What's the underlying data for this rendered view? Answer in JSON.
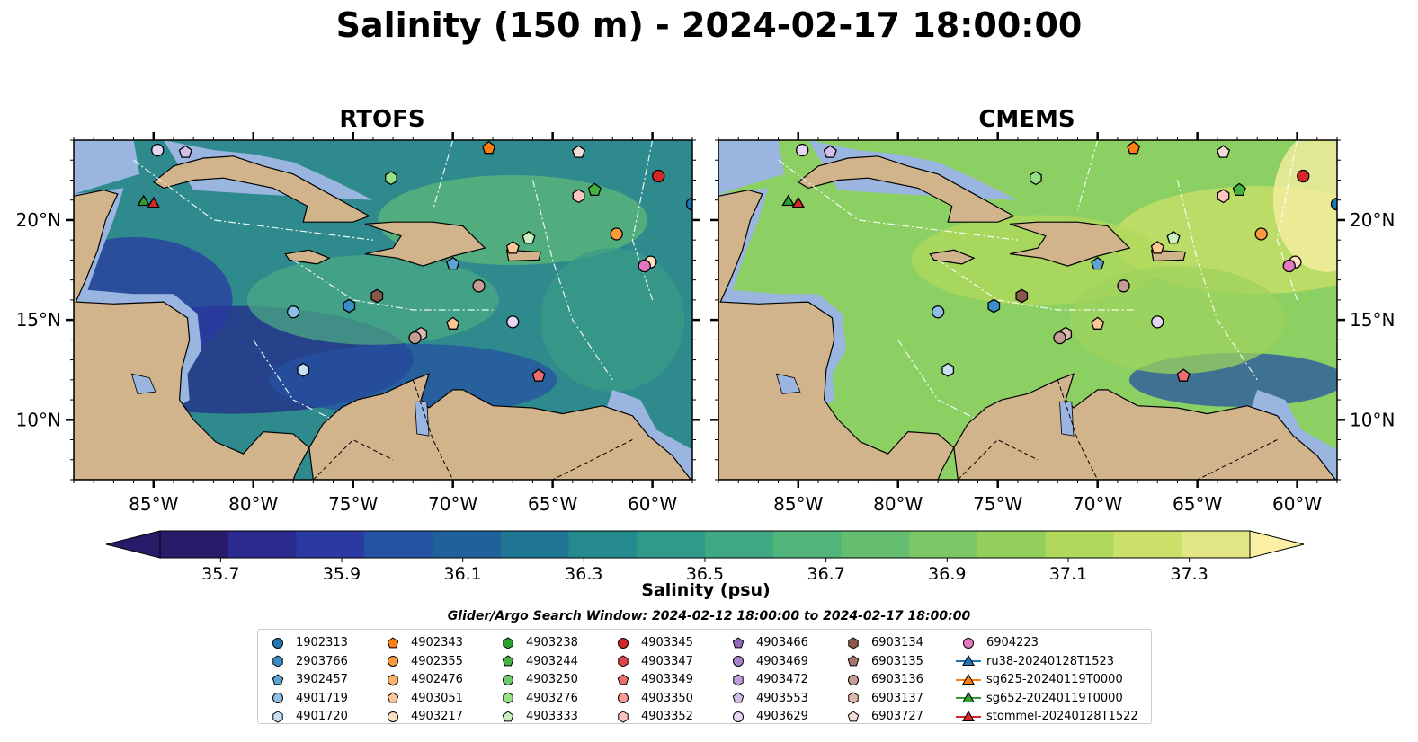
{
  "title": "Salinity (150 m) - 2024-02-17 18:00:00",
  "panels": [
    {
      "title": "RTOFS"
    },
    {
      "title": "CMEMS"
    }
  ],
  "axes": {
    "x_ticks": [
      "85°W",
      "80°W",
      "75°W",
      "70°W",
      "65°W",
      "60°W"
    ],
    "x_tick_values": [
      -85,
      -80,
      -75,
      -70,
      -65,
      -60
    ],
    "y_ticks": [
      "20°N",
      "15°N",
      "10°N"
    ],
    "y_tick_values": [
      20,
      15,
      10
    ],
    "lon_range": [
      -89,
      -58
    ],
    "lat_range": [
      7,
      24
    ]
  },
  "colorbar": {
    "label": "Salinity (psu)",
    "ticks": [
      "35.7",
      "35.9",
      "36.1",
      "36.3",
      "36.5",
      "36.7",
      "36.9",
      "37.1",
      "37.3"
    ],
    "tick_values": [
      35.7,
      35.9,
      36.1,
      36.3,
      36.5,
      36.7,
      36.9,
      37.1,
      37.3
    ],
    "range": [
      35.6,
      37.4
    ],
    "colors": [
      "#2a1b6a",
      "#2b2a8e",
      "#2a3aa2",
      "#2552a2",
      "#1f629b",
      "#1f7594",
      "#258a8e",
      "#309a8a",
      "#3fa882",
      "#51b47a",
      "#65bd6f",
      "#7cc665",
      "#94cf5e",
      "#b0d95b",
      "#cbe068",
      "#e2e685"
    ],
    "extend_low": "#2a1b6a",
    "extend_high": "#fcf0a4"
  },
  "search_window": "Glider/Argo Search Window: 2024-02-12 18:00:00 to 2024-02-17 18:00:00",
  "colors": {
    "land": "#d2b48c",
    "shelf": "#99b5e0",
    "ocean_rtofs": "#2e8a8c",
    "ocean_cmems": "#8ccf63"
  },
  "legend": [
    {
      "label": "1902313",
      "marker": "circle",
      "color": "#1f77b4"
    },
    {
      "label": "2903766",
      "marker": "hexagon",
      "color": "#3a8fc6"
    },
    {
      "label": "3902457",
      "marker": "pentagon",
      "color": "#5ea3d4"
    },
    {
      "label": "4901719",
      "marker": "circle",
      "color": "#8fbfe5"
    },
    {
      "label": "4901720",
      "marker": "hexagon",
      "color": "#c7e0f4"
    },
    {
      "label": "4902343",
      "marker": "pentagon",
      "color": "#ff7f0e"
    },
    {
      "label": "4902355",
      "marker": "circle",
      "color": "#fd9a3e"
    },
    {
      "label": "4902476",
      "marker": "hexagon",
      "color": "#fdb26a"
    },
    {
      "label": "4903051",
      "marker": "pentagon",
      "color": "#fdc896"
    },
    {
      "label": "4903217",
      "marker": "circle",
      "color": "#fde0c0"
    },
    {
      "label": "4903238",
      "marker": "hexagon",
      "color": "#2ca02c"
    },
    {
      "label": "4903244",
      "marker": "pentagon",
      "color": "#44b244"
    },
    {
      "label": "4903250",
      "marker": "circle",
      "color": "#6ccb6c"
    },
    {
      "label": "4903276",
      "marker": "hexagon",
      "color": "#98df8a"
    },
    {
      "label": "4903333",
      "marker": "pentagon",
      "color": "#c8f0c0"
    },
    {
      "label": "4903345",
      "marker": "circle",
      "color": "#d62728"
    },
    {
      "label": "4903347",
      "marker": "hexagon",
      "color": "#e0454a"
    },
    {
      "label": "4903349",
      "marker": "pentagon",
      "color": "#ec6d70"
    },
    {
      "label": "4903350",
      "marker": "circle",
      "color": "#ff9896"
    },
    {
      "label": "4903352",
      "marker": "hexagon",
      "color": "#ffc4c2"
    },
    {
      "label": "4903466",
      "marker": "pentagon",
      "color": "#9467bd"
    },
    {
      "label": "4903469",
      "marker": "circle",
      "color": "#a982ce"
    },
    {
      "label": "4903472",
      "marker": "hexagon",
      "color": "#bd9fdc"
    },
    {
      "label": "4903553",
      "marker": "pentagon",
      "color": "#d3bdea"
    },
    {
      "label": "4903629",
      "marker": "circle",
      "color": "#e6d6f5"
    },
    {
      "label": "6903134",
      "marker": "hexagon",
      "color": "#8c564b"
    },
    {
      "label": "6903135",
      "marker": "pentagon",
      "color": "#a8756a"
    },
    {
      "label": "6903136",
      "marker": "circle",
      "color": "#c49c94"
    },
    {
      "label": "6903137",
      "marker": "hexagon",
      "color": "#dbb8b0"
    },
    {
      "label": "6903727",
      "marker": "pentagon",
      "color": "#f2dcd6"
    },
    {
      "label": "6904223",
      "marker": "circle",
      "color": "#e377c2"
    },
    {
      "label": "ru38-20240128T1523",
      "marker": "triangle-line",
      "color": "#1f77b4"
    },
    {
      "label": "sg625-20240119T0000",
      "marker": "triangle-line",
      "color": "#ff7f0e"
    },
    {
      "label": "sg652-20240119T0000",
      "marker": "triangle-line",
      "color": "#2ca02c"
    },
    {
      "label": "stommel-20240128T1522",
      "marker": "triangle-line",
      "color": "#d62728"
    }
  ],
  "observations": [
    {
      "lon": -84.8,
      "lat": 23.5,
      "marker": "circle",
      "color": "#e6d6f5"
    },
    {
      "lon": -83.4,
      "lat": 23.4,
      "marker": "pentagon",
      "color": "#d3bdea"
    },
    {
      "lon": -68.2,
      "lat": 23.6,
      "marker": "pentagon",
      "color": "#ff7f0e"
    },
    {
      "lon": -63.7,
      "lat": 23.4,
      "marker": "pentagon",
      "color": "#f2dcd6"
    },
    {
      "lon": -59.7,
      "lat": 22.2,
      "marker": "circle",
      "color": "#d62728"
    },
    {
      "lon": -73.1,
      "lat": 22.1,
      "marker": "hexagon",
      "color": "#98df8a"
    },
    {
      "lon": -63.7,
      "lat": 21.2,
      "marker": "hexagon",
      "color": "#ffc4c2"
    },
    {
      "lon": -62.9,
      "lat": 21.5,
      "marker": "pentagon",
      "color": "#44b244"
    },
    {
      "lon": -58.0,
      "lat": 20.8,
      "marker": "circle",
      "color": "#1f77b4"
    },
    {
      "lon": -61.8,
      "lat": 19.3,
      "marker": "circle",
      "color": "#fd9a3e"
    },
    {
      "lon": -66.2,
      "lat": 19.1,
      "marker": "pentagon",
      "color": "#c8f0c0"
    },
    {
      "lon": -67.0,
      "lat": 18.6,
      "marker": "pentagon",
      "color": "#fdc896"
    },
    {
      "lon": -60.1,
      "lat": 17.9,
      "marker": "circle",
      "color": "#fde0c0"
    },
    {
      "lon": -60.4,
      "lat": 17.7,
      "marker": "circle",
      "color": "#e377c2"
    },
    {
      "lon": -70.0,
      "lat": 17.8,
      "marker": "pentagon",
      "color": "#5ea3d4"
    },
    {
      "lon": -68.7,
      "lat": 16.7,
      "marker": "circle",
      "color": "#c49c94"
    },
    {
      "lon": -73.8,
      "lat": 16.2,
      "marker": "hexagon",
      "color": "#8c564b"
    },
    {
      "lon": -75.2,
      "lat": 15.7,
      "marker": "hexagon",
      "color": "#3a8fc6"
    },
    {
      "lon": -78.0,
      "lat": 15.4,
      "marker": "circle",
      "color": "#8fbfe5"
    },
    {
      "lon": -70.0,
      "lat": 14.8,
      "marker": "pentagon",
      "color": "#fdc896"
    },
    {
      "lon": -67.0,
      "lat": 14.9,
      "marker": "circle",
      "color": "#e6d6f5"
    },
    {
      "lon": -71.6,
      "lat": 14.3,
      "marker": "hexagon",
      "color": "#dbb8b0"
    },
    {
      "lon": -71.9,
      "lat": 14.1,
      "marker": "circle",
      "color": "#c49c94"
    },
    {
      "lon": -77.5,
      "lat": 12.5,
      "marker": "hexagon",
      "color": "#c7e0f4"
    },
    {
      "lon": -65.7,
      "lat": 12.2,
      "marker": "pentagon",
      "color": "#ec6d70"
    },
    {
      "lon": -85.5,
      "lat": 20.9,
      "marker": "triangle",
      "color": "#2ca02c"
    },
    {
      "lon": -85.0,
      "lat": 20.8,
      "marker": "triangle",
      "color": "#d62728"
    }
  ]
}
